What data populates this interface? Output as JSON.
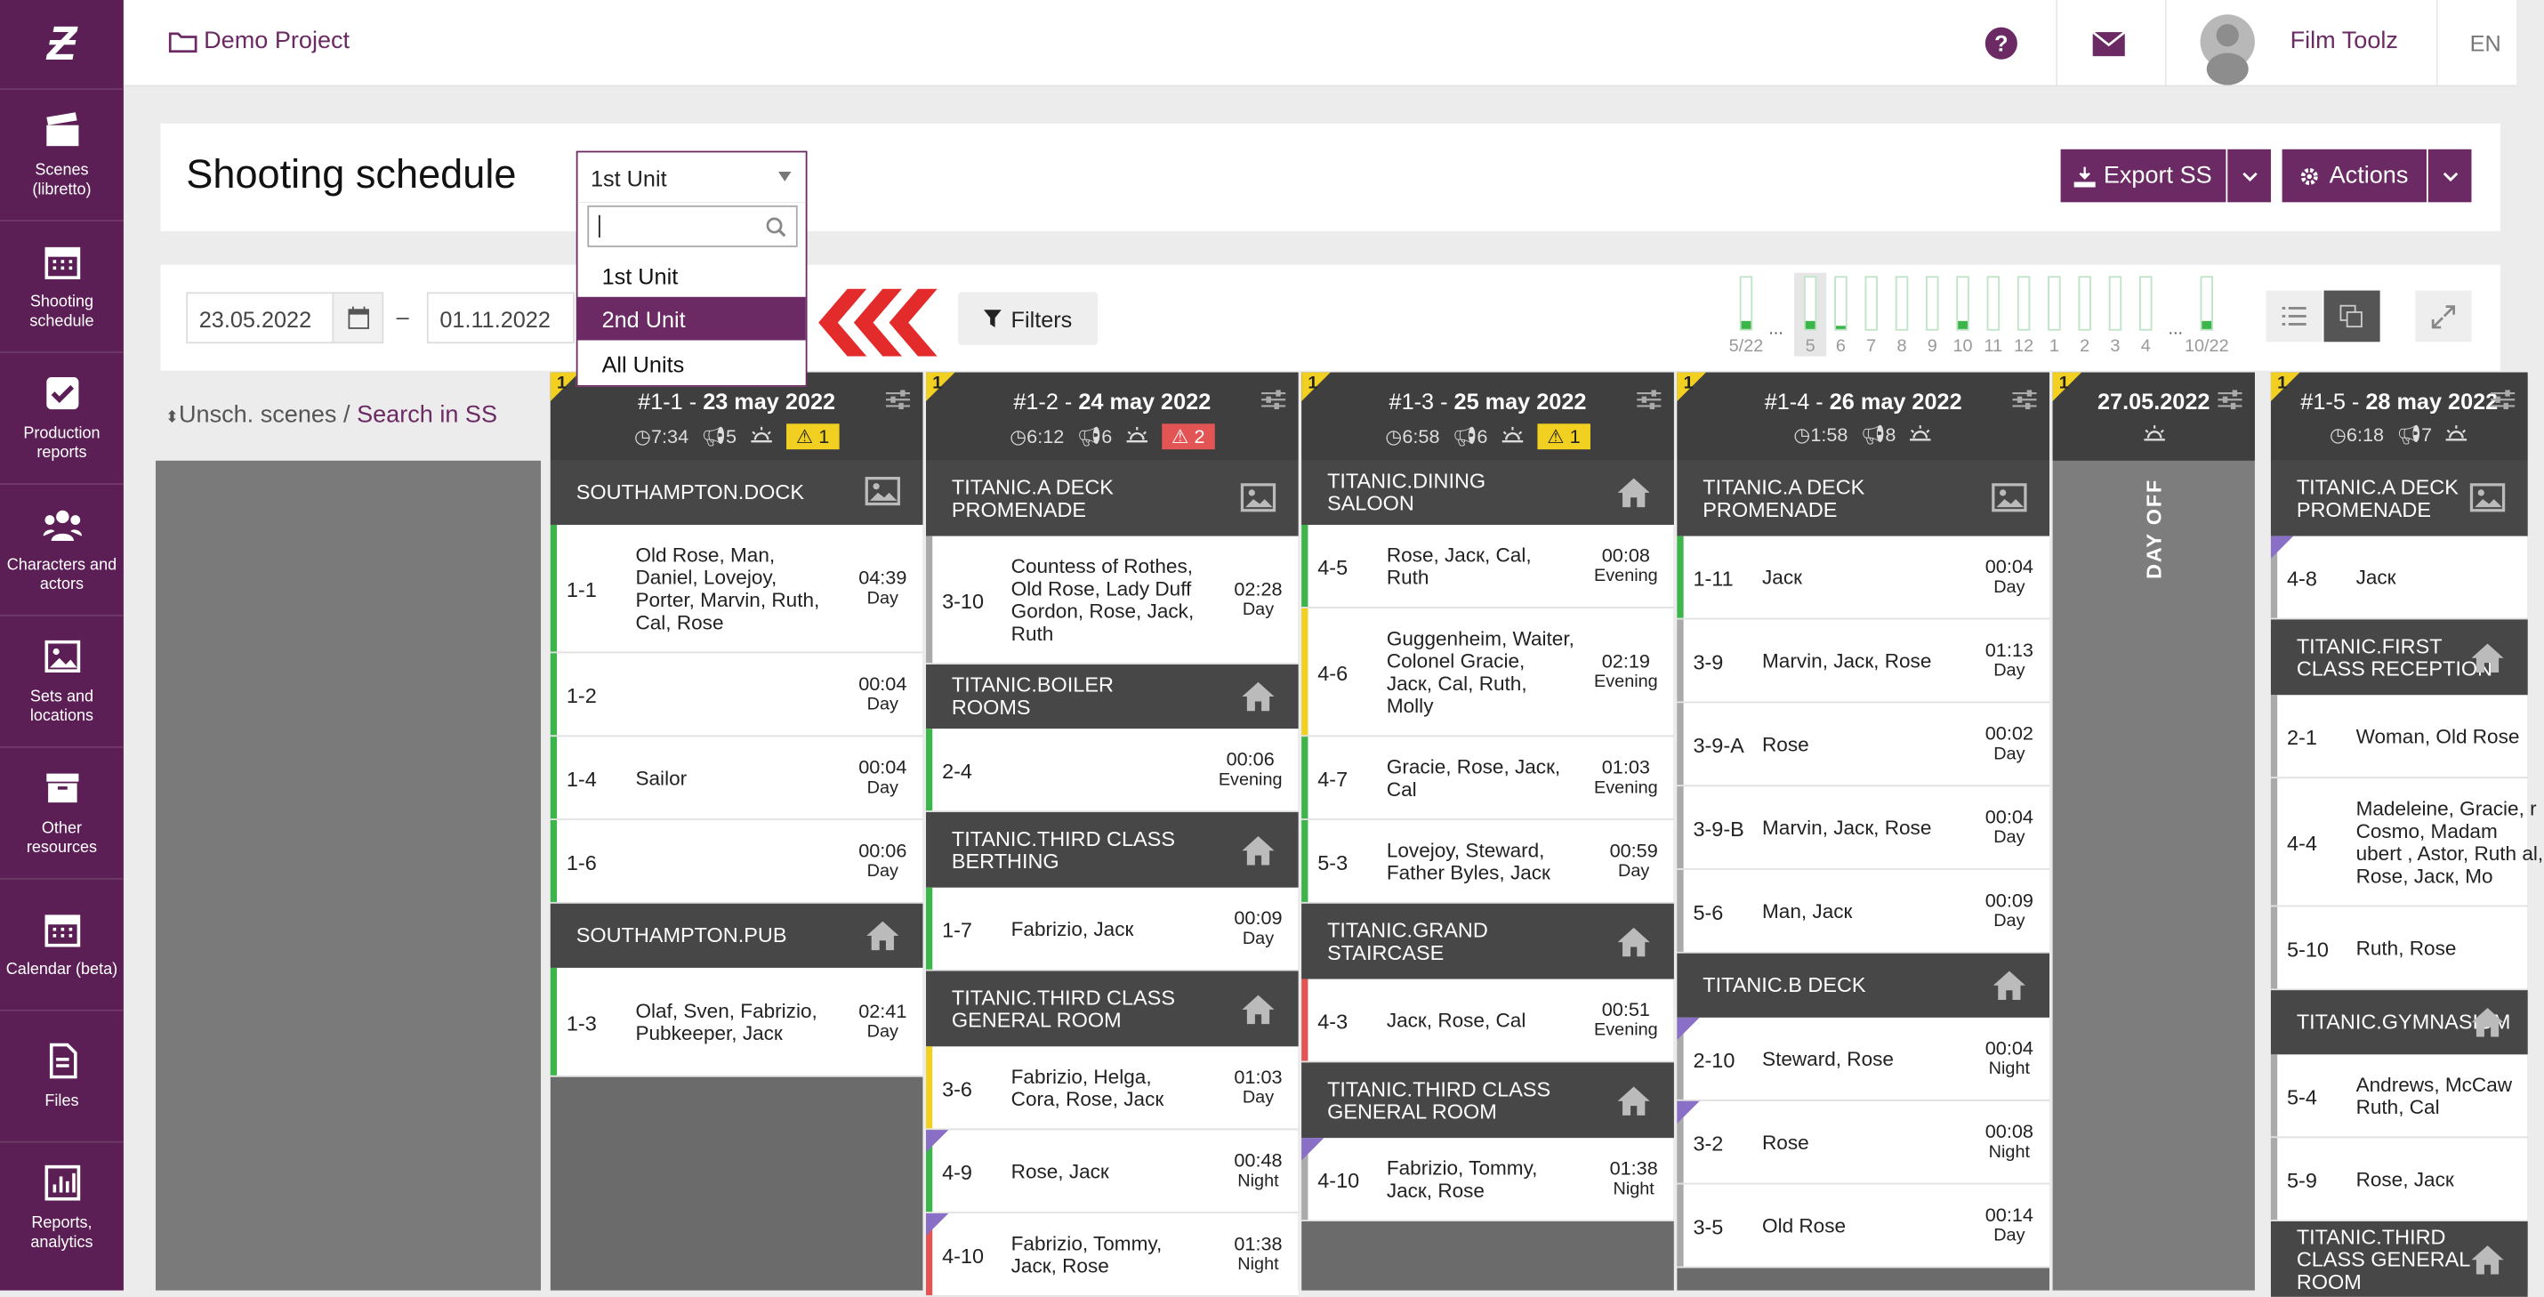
{
  "sidebar": {
    "items": [
      {
        "label": "Scenes (libretto)",
        "icon": "clapperboard-icon"
      },
      {
        "label": "Shooting schedule",
        "icon": "calendar-icon"
      },
      {
        "label": "Production reports",
        "icon": "checkbox-icon"
      },
      {
        "label": "Characters and actors",
        "icon": "users-icon"
      },
      {
        "label": "Sets and locations",
        "icon": "image-icon"
      },
      {
        "label": "Other resources",
        "icon": "archive-icon"
      },
      {
        "label": "Calendar (beta)",
        "icon": "calendar-icon"
      },
      {
        "label": "Files",
        "icon": "file-icon"
      },
      {
        "label": "Reports, analytics",
        "icon": "chart-icon"
      }
    ]
  },
  "topbar": {
    "project": "Demo Project",
    "user": "Film Toolz",
    "lang": "EN"
  },
  "header": {
    "title": "Shooting schedule",
    "unit_selected": "1st Unit",
    "export": "Export SS",
    "actions": "Actions"
  },
  "dropdown": {
    "search_value": "",
    "options": [
      "1st Unit",
      "2nd Unit",
      "All Units"
    ],
    "selected_index": 1
  },
  "filters": {
    "date_from": "23.05.2022",
    "date_sep": "–",
    "date_to": "01.11.2022",
    "filters_label": "Filters"
  },
  "minibars": {
    "left_label": "5/22",
    "ellipsis": "...",
    "right_label": "10/22",
    "labels": [
      "5",
      "6",
      "7",
      "8",
      "9",
      "10",
      "11",
      "12",
      "1",
      "2",
      "3",
      "4"
    ],
    "fill_fractions": [
      0.15,
      0.05,
      0,
      0,
      0,
      0.15,
      0,
      0,
      0,
      0,
      0,
      0
    ],
    "left_fill": 0.15,
    "right_fill": 0.15
  },
  "left_panel": {
    "unsched": "Unsch. scenes",
    "slash": " / ",
    "search": "Search in SS"
  },
  "days": [
    {
      "title": "#1-1",
      "date": "23 may 2022",
      "corner": "1",
      "time": "7:34",
      "scenes": "5",
      "badge": "1",
      "badge_color": "#f2d021",
      "sets": [
        {
          "name": "SOUTHAMPTON.DOCK",
          "type": "exterior",
          "scenes": [
            {
              "num": "1-1",
              "cast": "Old Rose, Man, Daniel, Lovejoy, Porter, Marvin, Ruth, Cal, Rose",
              "time": "04:39",
              "tod": "Day",
              "strip": "#3cb54a"
            },
            {
              "num": "1-2",
              "cast": "",
              "time": "00:04",
              "tod": "Day",
              "strip": "#3cb54a"
            },
            {
              "num": "1-4",
              "cast": "Sailor",
              "time": "00:04",
              "tod": "Day",
              "strip": "#3cb54a"
            },
            {
              "num": "1-6",
              "cast": "",
              "time": "00:06",
              "tod": "Day",
              "strip": "#3cb54a"
            }
          ]
        },
        {
          "name": "SOUTHAMPTON.PUB",
          "type": "interior",
          "scenes": [
            {
              "num": "1-3",
              "cast": "Olaf, Sven, Fabrizio, Pubkeeper, Jacк",
              "time": "02:41",
              "tod": "Day",
              "strip": "#3cb54a"
            }
          ]
        }
      ]
    },
    {
      "title": "#1-2",
      "date": "24 may 2022",
      "corner": "1",
      "time": "6:12",
      "scenes": "6",
      "badge": "2",
      "badge_color": "#e35454",
      "sets": [
        {
          "name": "TITANIC.A DECK PROMENADE",
          "type": "exterior",
          "scenes": [
            {
              "num": "3-10",
              "cast": "Countess of Rothes, Old Rose, Lady Duff Gordon, Rose, Jack, Ruth",
              "time": "02:28",
              "tod": "Day",
              "strip": "#aaaaaa"
            }
          ]
        },
        {
          "name": "TITANIC.BOILER ROOMS",
          "type": "interior",
          "scenes": [
            {
              "num": "2-4",
              "cast": "",
              "time": "00:06",
              "tod": "Evening",
              "strip": "#3cb54a"
            }
          ]
        },
        {
          "name": "TITANIC.THIRD CLASS BERTHING",
          "type": "interior",
          "scenes": [
            {
              "num": "1-7",
              "cast": "Fabrizio, Jacк",
              "time": "00:09",
              "tod": "Day",
              "strip": "#3cb54a"
            }
          ]
        },
        {
          "name": "TITANIC.THIRD CLASS GENERAL ROOM",
          "type": "interior",
          "scenes": [
            {
              "num": "3-6",
              "cast": "Fabrizio, Helga, Cora, Rose, Jacк",
              "time": "01:03",
              "tod": "Day",
              "strip": "#f2d021"
            },
            {
              "num": "4-9",
              "cast": "Rose, Jacк",
              "time": "00:48",
              "tod": "Night",
              "strip": "#3cb54a",
              "tri": true
            },
            {
              "num": "4-10",
              "cast": "Fabrizio, Tommy, Jacк, Rose",
              "time": "01:38",
              "tod": "Night",
              "strip": "#e35454",
              "tri": true
            }
          ]
        }
      ]
    },
    {
      "title": "#1-3",
      "date": "25 may 2022",
      "corner": "1",
      "time": "6:58",
      "scenes": "6",
      "badge": "1",
      "badge_color": "#f2d021",
      "sets": [
        {
          "name": "TITANIC.DINING SALOON",
          "type": "interior",
          "scenes": [
            {
              "num": "4-5",
              "cast": "Rose, Jacк, Cal, Ruth",
              "time": "00:08",
              "tod": "Evening",
              "strip": "#3cb54a"
            },
            {
              "num": "4-6",
              "cast": "Guggenheim, Waiter, Colonel Gracie, Jacк, Cal, Ruth, Molly",
              "time": "02:19",
              "tod": "Evening",
              "strip": "#f2d021"
            },
            {
              "num": "4-7",
              "cast": "Gracie, Rose, Jacк, Cal",
              "time": "01:03",
              "tod": "Evening",
              "strip": "#3cb54a"
            },
            {
              "num": "5-3",
              "cast": "Lovejoy, Steward, Father Byles, Jacк",
              "time": "00:59",
              "tod": "Day",
              "strip": "#3cb54a"
            }
          ]
        },
        {
          "name": "TITANIC.GRAND STAIRCASE",
          "type": "interior",
          "scenes": [
            {
              "num": "4-3",
              "cast": "Jacк, Rose, Cal",
              "time": "00:51",
              "tod": "Evening",
              "strip": "#e35454"
            }
          ]
        },
        {
          "name": "TITANIC.THIRD CLASS GENERAL ROOM",
          "type": "interior",
          "scenes": [
            {
              "num": "4-10",
              "cast": "Fabrizio, Tommy, Jacк, Rose",
              "time": "01:38",
              "tod": "Night",
              "strip": "#aaaaaa",
              "tri": true
            }
          ]
        }
      ]
    },
    {
      "title": "#1-4",
      "date": "26 may 2022",
      "corner": "1",
      "time": "1:58",
      "scenes": "8",
      "badge": "",
      "badge_color": "",
      "sets": [
        {
          "name": "TITANIC.A DECK PROMENADE",
          "type": "exterior",
          "scenes": [
            {
              "num": "1-11",
              "cast": "Jacк",
              "time": "00:04",
              "tod": "Day",
              "strip": "#3cb54a"
            },
            {
              "num": "3-9",
              "cast": "Marvin, Jacк, Rose",
              "time": "01:13",
              "tod": "Day",
              "strip": "#aaaaaa"
            },
            {
              "num": "3-9-A",
              "cast": "Rose",
              "time": "00:02",
              "tod": "Day",
              "strip": "#aaaaaa"
            },
            {
              "num": "3-9-B",
              "cast": "Marvin, Jacк, Rose",
              "time": "00:04",
              "tod": "Day",
              "strip": "#aaaaaa"
            },
            {
              "num": "5-6",
              "cast": "Man, Jacк",
              "time": "00:09",
              "tod": "Day",
              "strip": "#aaaaaa"
            }
          ]
        },
        {
          "name": "TITANIC.B DECK",
          "type": "interior",
          "scenes": [
            {
              "num": "2-10",
              "cast": "Steward, Rose",
              "time": "00:04",
              "tod": "Night",
              "strip": "#aaaaaa",
              "tri": true
            },
            {
              "num": "3-2",
              "cast": "Rose",
              "time": "00:08",
              "tod": "Night",
              "strip": "#aaaaaa",
              "tri": true
            },
            {
              "num": "3-5",
              "cast": "Old Rose",
              "time": "00:14",
              "tod": "Day",
              "strip": "#aaaaaa"
            }
          ]
        }
      ]
    },
    {
      "title": "",
      "date": "27.05.2022",
      "corner": "1",
      "dayoff": "DAY OFF"
    },
    {
      "title": "#1-5",
      "date": "28 may 2022",
      "corner": "1",
      "time": "6:18",
      "scenes": "7",
      "badge": "",
      "badge_color": "",
      "sets": [
        {
          "name": "TITANIC.A DECK PROMENADE",
          "type": "exterior",
          "scenes": [
            {
              "num": "4-8",
              "cast": "Jacк",
              "time": "",
              "tod": "",
              "strip": "#aaaaaa",
              "tri": true
            }
          ]
        },
        {
          "name": "TITANIC.FIRST CLASS RECEPTION",
          "type": "interior",
          "scenes": [
            {
              "num": "2-1",
              "cast": "Woman, Old Rose",
              "time": "",
              "tod": "",
              "strip": "#aaaaaa"
            },
            {
              "num": "4-4",
              "cast": "Madeleine, Gracie, r Cosmo, Madam ubert , Astor, Ruth al, Rose, Jacк, Mo",
              "time": "",
              "tod": "",
              "strip": "#aaaaaa"
            },
            {
              "num": "5-10",
              "cast": "Ruth, Rose",
              "time": "",
              "tod": "",
              "strip": "#aaaaaa"
            }
          ]
        },
        {
          "name": "TITANIC.GYMNASIUM",
          "type": "interior",
          "scenes": [
            {
              "num": "5-4",
              "cast": "Andrews, McCaw Ruth, Cal",
              "time": "",
              "tod": "",
              "strip": "#aaaaaa"
            },
            {
              "num": "5-9",
              "cast": "Rose, Jacк",
              "time": "",
              "tod": "",
              "strip": "#aaaaaa"
            }
          ]
        },
        {
          "name": "TITANIC.THIRD CLASS GENERAL ROOM",
          "type": "interior",
          "scenes": []
        }
      ]
    }
  ]
}
